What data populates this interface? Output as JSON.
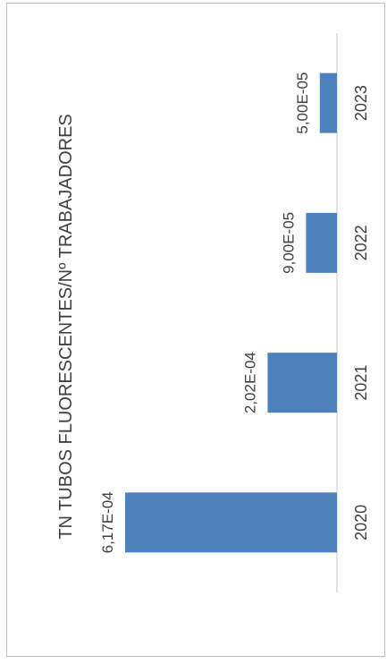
{
  "chart_data": {
    "type": "bar",
    "orientation": "horizontal",
    "rotated": "90deg-clockwise",
    "title": "TN TUBOS FLUORESCENTES/Nº TRABAJADORES",
    "categories": [
      "2020",
      "2021",
      "2022",
      "2023"
    ],
    "values": [
      0.000617,
      0.000202,
      9e-05,
      5e-05
    ],
    "data_labels": [
      "6,17E-04",
      "2,02E-04",
      "9,00E-05",
      "5,00E-05"
    ],
    "bar_color": "#4f81bd",
    "axis_color": "#d9d9d9",
    "grid": false,
    "legend": "none"
  }
}
